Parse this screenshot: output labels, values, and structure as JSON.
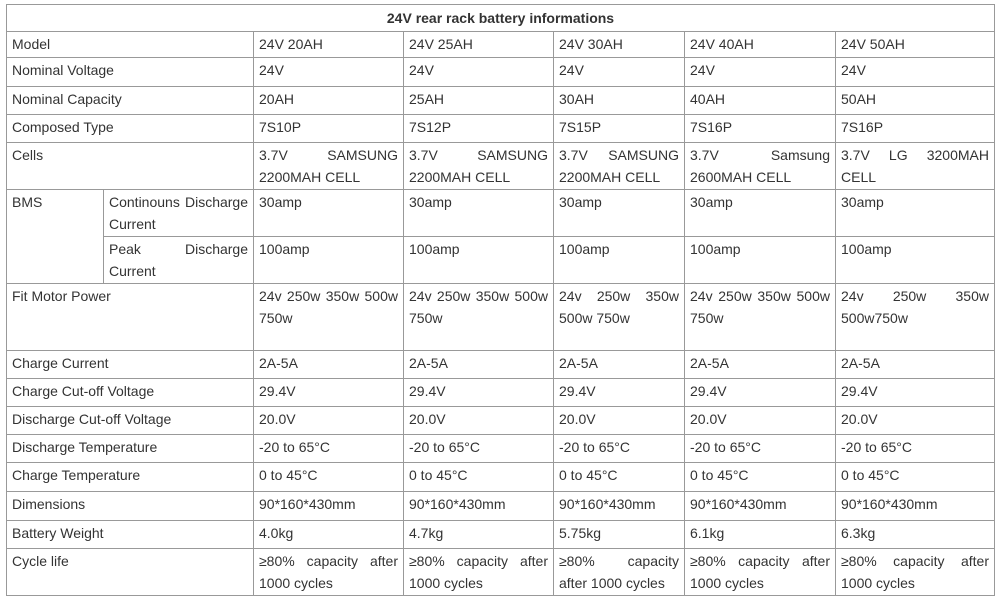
{
  "table": {
    "title": "24V rear rack battery informations",
    "rows": [
      {
        "label": "Model",
        "cells": [
          "24V 20AH",
          "24V 25AH",
          "24V 30AH",
          "24V 40AH",
          "24V 50AH"
        ]
      },
      {
        "label": "Nominal Voltage",
        "cells": [
          "24V",
          "24V",
          "24V",
          "24V",
          "24V"
        ]
      },
      {
        "label": "Nominal Capacity",
        "cells": [
          "20AH",
          "25AH",
          "30AH",
          "40AH",
          "50AH"
        ]
      },
      {
        "label": "Composed Type",
        "cells": [
          "7S10P",
          "7S12P",
          "7S15P",
          "7S16P",
          "7S16P"
        ]
      },
      {
        "label": "Cells",
        "cells": [
          "3.7V SAMSUNG 2200MAH CELL",
          "3.7V SAMSUNG 2200MAH CELL",
          "3.7V SAMSUNG 2200MAH CELL",
          "3.7V Samsung 2600MAH CELL",
          "3.7V LG 3200MAH CELL"
        ]
      },
      {
        "label": "BMS",
        "sub": [
          {
            "label": "Continouns Discharge Current",
            "cells": [
              "30amp",
              "30amp",
              "30amp",
              "30amp",
              "30amp"
            ]
          },
          {
            "label": "Peak Discharge Current",
            "cells": [
              "100amp",
              "100amp",
              "100amp",
              "100amp",
              "100amp"
            ]
          }
        ]
      },
      {
        "label": "Fit Motor Power",
        "cells": [
          "24v 250w 350w 500w 750w",
          "24v 250w 350w 500w 750w",
          "24v 250w 350w 500w 750w",
          "24v 250w 350w 500w 750w",
          "24v 250w 350w 500w750w"
        ]
      },
      {
        "label": "Charge Current",
        "cells": [
          "2A-5A",
          "2A-5A",
          "2A-5A",
          "2A-5A",
          "2A-5A"
        ]
      },
      {
        "label": "Charge Cut-off Voltage",
        "cells": [
          "29.4V",
          "29.4V",
          "29.4V",
          "29.4V",
          "29.4V"
        ]
      },
      {
        "label": "Discharge Cut-off Voltage",
        "cells": [
          "20.0V",
          "20.0V",
          "20.0V",
          "20.0V",
          "20.0V"
        ]
      },
      {
        "label": "Discharge Temperature",
        "cells": [
          "-20 to 65°C",
          "-20 to 65°C",
          "-20 to 65°C",
          "-20 to 65°C",
          "-20 to 65°C"
        ]
      },
      {
        "label": "Charge Temperature",
        "cells": [
          "0 to 45°C",
          "0 to 45°C",
          "0 to 45°C",
          "0 to 45°C",
          "0 to 45°C"
        ]
      },
      {
        "label": "Dimensions",
        "cells": [
          "90*160*430mm",
          "90*160*430mm",
          "90*160*430mm",
          "90*160*430mm",
          "90*160*430mm"
        ]
      },
      {
        "label": "Battery Weight",
        "cells": [
          "4.0kg",
          "4.7kg",
          "5.75kg",
          "6.1kg",
          "6.3kg"
        ]
      },
      {
        "label": "Cycle life",
        "cells": [
          "≥80% capacity after 1000 cycles",
          "≥80% capacity after 1000 cycles",
          "≥80% capacity after 1000 cycles",
          "≥80% capacity after 1000 cycles",
          "≥80% capacity after 1000 cycles"
        ]
      }
    ]
  }
}
